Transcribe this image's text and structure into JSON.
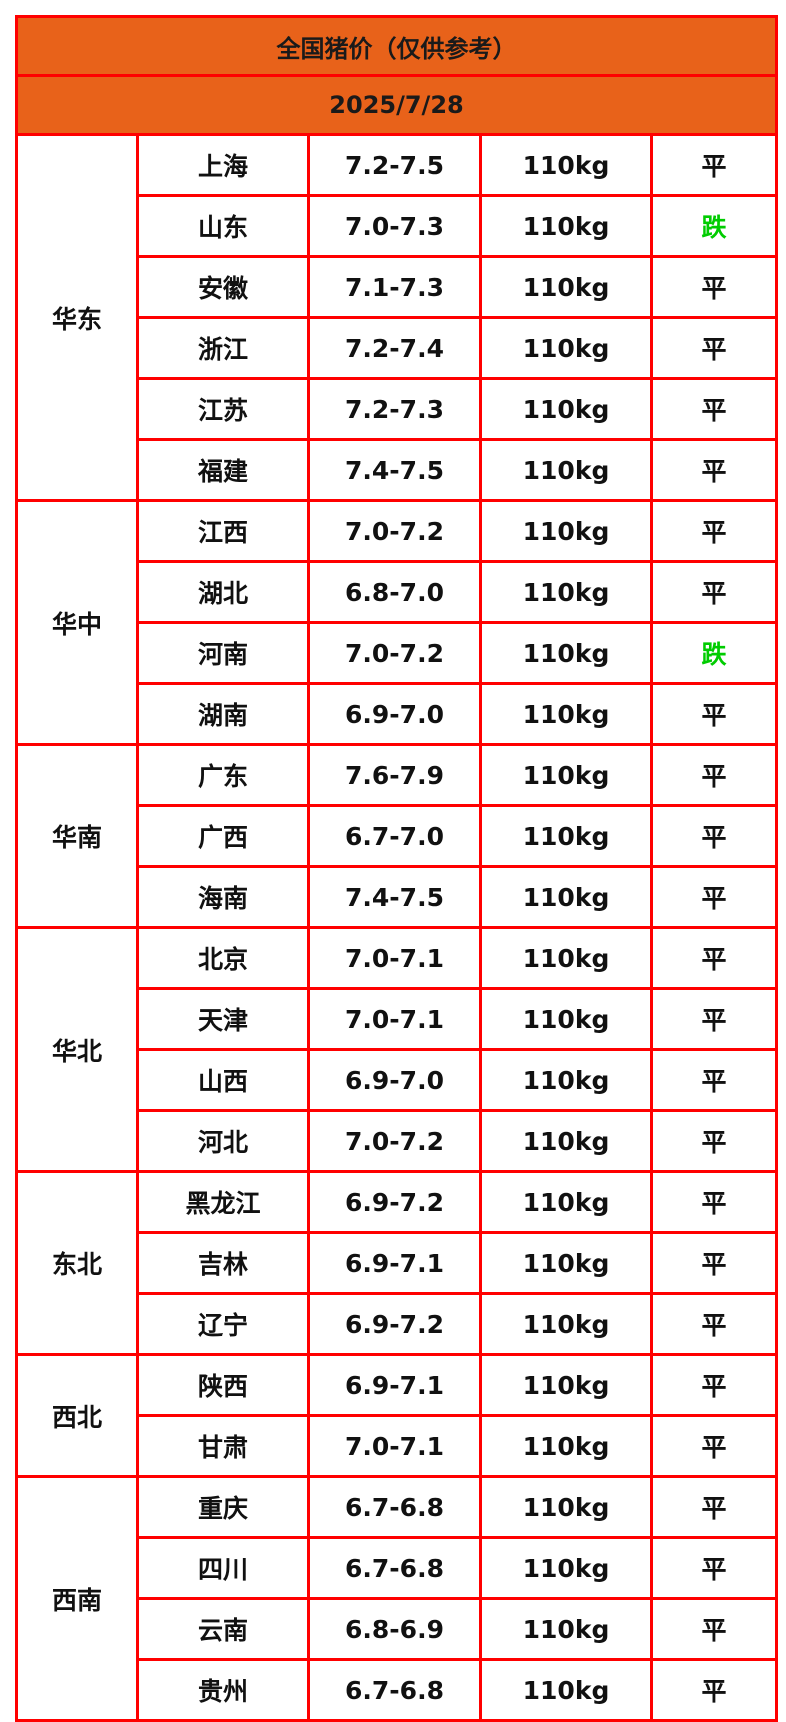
{
  "title": "全国猪价（仅供参考）",
  "date": "2025/7/28",
  "colors": {
    "header_bg": "#e8621a",
    "border": "#ff0000",
    "fall": "#00cc00"
  },
  "regions": [
    {
      "name": "华东",
      "rows": [
        {
          "city": "上海",
          "price": "7.2-7.5",
          "weight": "110kg",
          "trend": "平"
        },
        {
          "city": "山东",
          "price": "7.0-7.3",
          "weight": "110kg",
          "trend": "跌"
        },
        {
          "city": "安徽",
          "price": "7.1-7.3",
          "weight": "110kg",
          "trend": "平"
        },
        {
          "city": "浙江",
          "price": "7.2-7.4",
          "weight": "110kg",
          "trend": "平"
        },
        {
          "city": "江苏",
          "price": "7.2-7.3",
          "weight": "110kg",
          "trend": "平"
        },
        {
          "city": "福建",
          "price": "7.4-7.5",
          "weight": "110kg",
          "trend": "平"
        }
      ]
    },
    {
      "name": "华中",
      "rows": [
        {
          "city": "江西",
          "price": "7.0-7.2",
          "weight": "110kg",
          "trend": "平"
        },
        {
          "city": "湖北",
          "price": "6.8-7.0",
          "weight": "110kg",
          "trend": "平"
        },
        {
          "city": "河南",
          "price": "7.0-7.2",
          "weight": "110kg",
          "trend": "跌"
        },
        {
          "city": "湖南",
          "price": "6.9-7.0",
          "weight": "110kg",
          "trend": "平"
        }
      ]
    },
    {
      "name": "华南",
      "rows": [
        {
          "city": "广东",
          "price": "7.6-7.9",
          "weight": "110kg",
          "trend": "平"
        },
        {
          "city": "广西",
          "price": "6.7-7.0",
          "weight": "110kg",
          "trend": "平"
        },
        {
          "city": "海南",
          "price": "7.4-7.5",
          "weight": "110kg",
          "trend": "平"
        }
      ]
    },
    {
      "name": "华北",
      "rows": [
        {
          "city": "北京",
          "price": "7.0-7.1",
          "weight": "110kg",
          "trend": "平"
        },
        {
          "city": "天津",
          "price": "7.0-7.1",
          "weight": "110kg",
          "trend": "平"
        },
        {
          "city": "山西",
          "price": "6.9-7.0",
          "weight": "110kg",
          "trend": "平"
        },
        {
          "city": "河北",
          "price": "7.0-7.2",
          "weight": "110kg",
          "trend": "平"
        }
      ]
    },
    {
      "name": "东北",
      "rows": [
        {
          "city": "黑龙江",
          "price": "6.9-7.2",
          "weight": "110kg",
          "trend": "平"
        },
        {
          "city": "吉林",
          "price": "6.9-7.1",
          "weight": "110kg",
          "trend": "平"
        },
        {
          "city": "辽宁",
          "price": "6.9-7.2",
          "weight": "110kg",
          "trend": "平"
        }
      ]
    },
    {
      "name": "西北",
      "rows": [
        {
          "city": "陕西",
          "price": "6.9-7.1",
          "weight": "110kg",
          "trend": "平"
        },
        {
          "city": "甘肃",
          "price": "7.0-7.1",
          "weight": "110kg",
          "trend": "平"
        }
      ]
    },
    {
      "name": "西南",
      "rows": [
        {
          "city": "重庆",
          "price": "6.7-6.8",
          "weight": "110kg",
          "trend": "平"
        },
        {
          "city": "四川",
          "price": "6.7-6.8",
          "weight": "110kg",
          "trend": "平"
        },
        {
          "city": "云南",
          "price": "6.8-6.9",
          "weight": "110kg",
          "trend": "平"
        },
        {
          "city": "贵州",
          "price": "6.7-6.8",
          "weight": "110kg",
          "trend": "平"
        }
      ]
    }
  ]
}
